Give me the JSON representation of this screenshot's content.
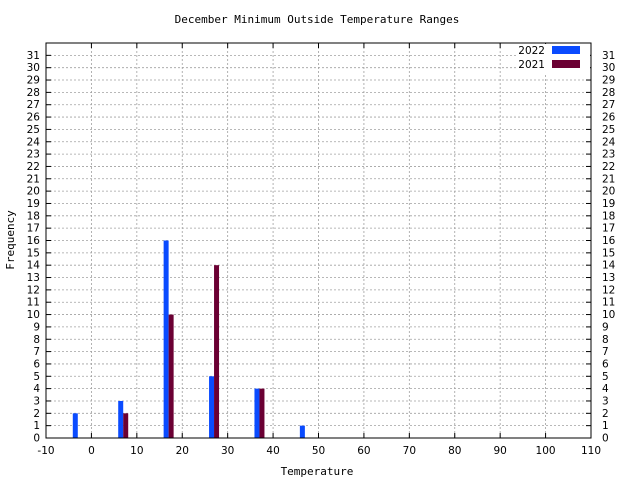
{
  "chart_data": {
    "type": "bar",
    "title": "December Minimum Outside Temperature Ranges",
    "xlabel": "Temperature",
    "ylabel": "Frequency",
    "xlim": [
      -10,
      110
    ],
    "ylim": [
      0,
      32
    ],
    "x_ticks": [
      -10,
      0,
      10,
      20,
      30,
      40,
      50,
      60,
      70,
      80,
      90,
      100,
      110
    ],
    "y_ticks": [
      0,
      1,
      2,
      3,
      4,
      5,
      6,
      7,
      8,
      9,
      10,
      11,
      12,
      13,
      14,
      15,
      16,
      17,
      18,
      19,
      20,
      21,
      22,
      23,
      24,
      25,
      26,
      27,
      28,
      29,
      30,
      31
    ],
    "categories": [
      -3,
      7,
      17,
      27,
      37,
      47
    ],
    "series": [
      {
        "name": "2022",
        "color": "#0a4bff",
        "values": [
          2,
          3,
          16,
          5,
          4,
          1
        ]
      },
      {
        "name": "2021",
        "color": "#6b0033",
        "values": [
          0,
          2,
          10,
          14,
          4,
          0
        ]
      }
    ],
    "grid": true,
    "legend": "top-right"
  }
}
